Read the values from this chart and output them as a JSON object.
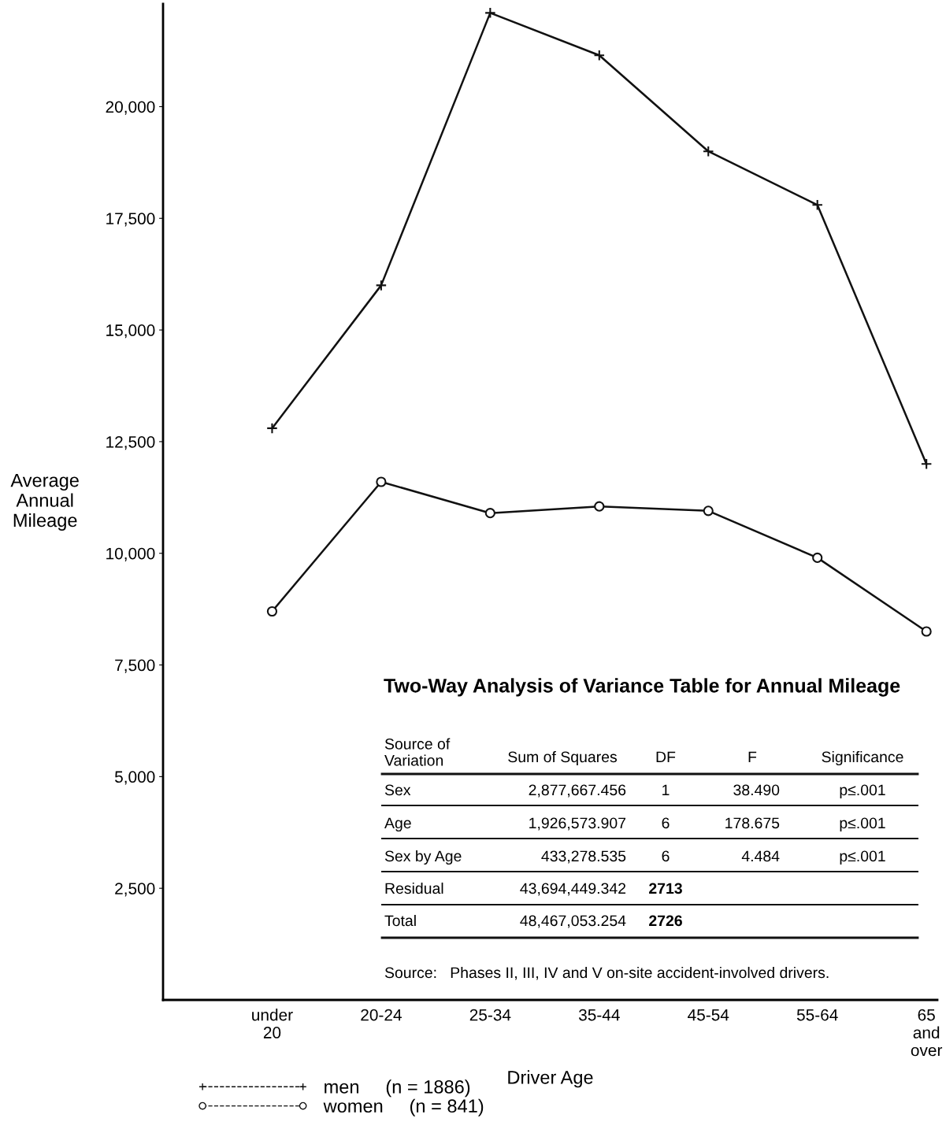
{
  "chart_data": {
    "type": "line",
    "xlabel": "Driver Age",
    "ylabel": "Average\nAnnual\nMileage",
    "categories": [
      "under\n20",
      "20-24",
      "25-34",
      "35-44",
      "45-54",
      "55-64",
      "65\nand\nover"
    ],
    "series": [
      {
        "name": "men     (n = 1886)",
        "color": "#111111",
        "marker": "cross",
        "values": [
          12800,
          16000,
          22100,
          21150,
          19000,
          17800,
          12000
        ]
      },
      {
        "name": "women     (n = 841)",
        "color": "#111111",
        "marker": "circle",
        "values": [
          8700,
          11600,
          10900,
          11050,
          10950,
          9900,
          8250
        ]
      }
    ],
    "ylim": [
      0,
      22300
    ],
    "yticks": [
      {
        "value": 2500,
        "label": "2,500"
      },
      {
        "value": 5000,
        "label": "5,000"
      },
      {
        "value": 7500,
        "label": "7,500"
      },
      {
        "value": 10000,
        "label": "10,000"
      },
      {
        "value": 12500,
        "label": "12,500"
      },
      {
        "value": 15000,
        "label": "15,000"
      },
      {
        "value": 17500,
        "label": "17,500"
      },
      {
        "value": 20000,
        "label": "20,000"
      }
    ],
    "grid": false,
    "legend": "bottom",
    "line_style": "solid",
    "annotations": [
      "Two-Way Analysis of Variance Table for Annual Mileage",
      "Source of\nVariation",
      "Sum of Squares",
      "DF",
      "F",
      "Significance",
      "Sex",
      "2,877,667.456",
      "1",
      "38.490",
      "p≤.001",
      "Age",
      "1,926,573.907",
      "6",
      "178.675",
      "p≤.001",
      "Sex by Age",
      "433,278.535",
      "6",
      "4.484",
      "p≤.001",
      "Residual",
      "43,694,449.342",
      "2713",
      "Total",
      "48,467,053.254",
      "2726",
      "Source:   Phases II, III, IV and V on-site accident-involved drivers."
    ]
  }
}
